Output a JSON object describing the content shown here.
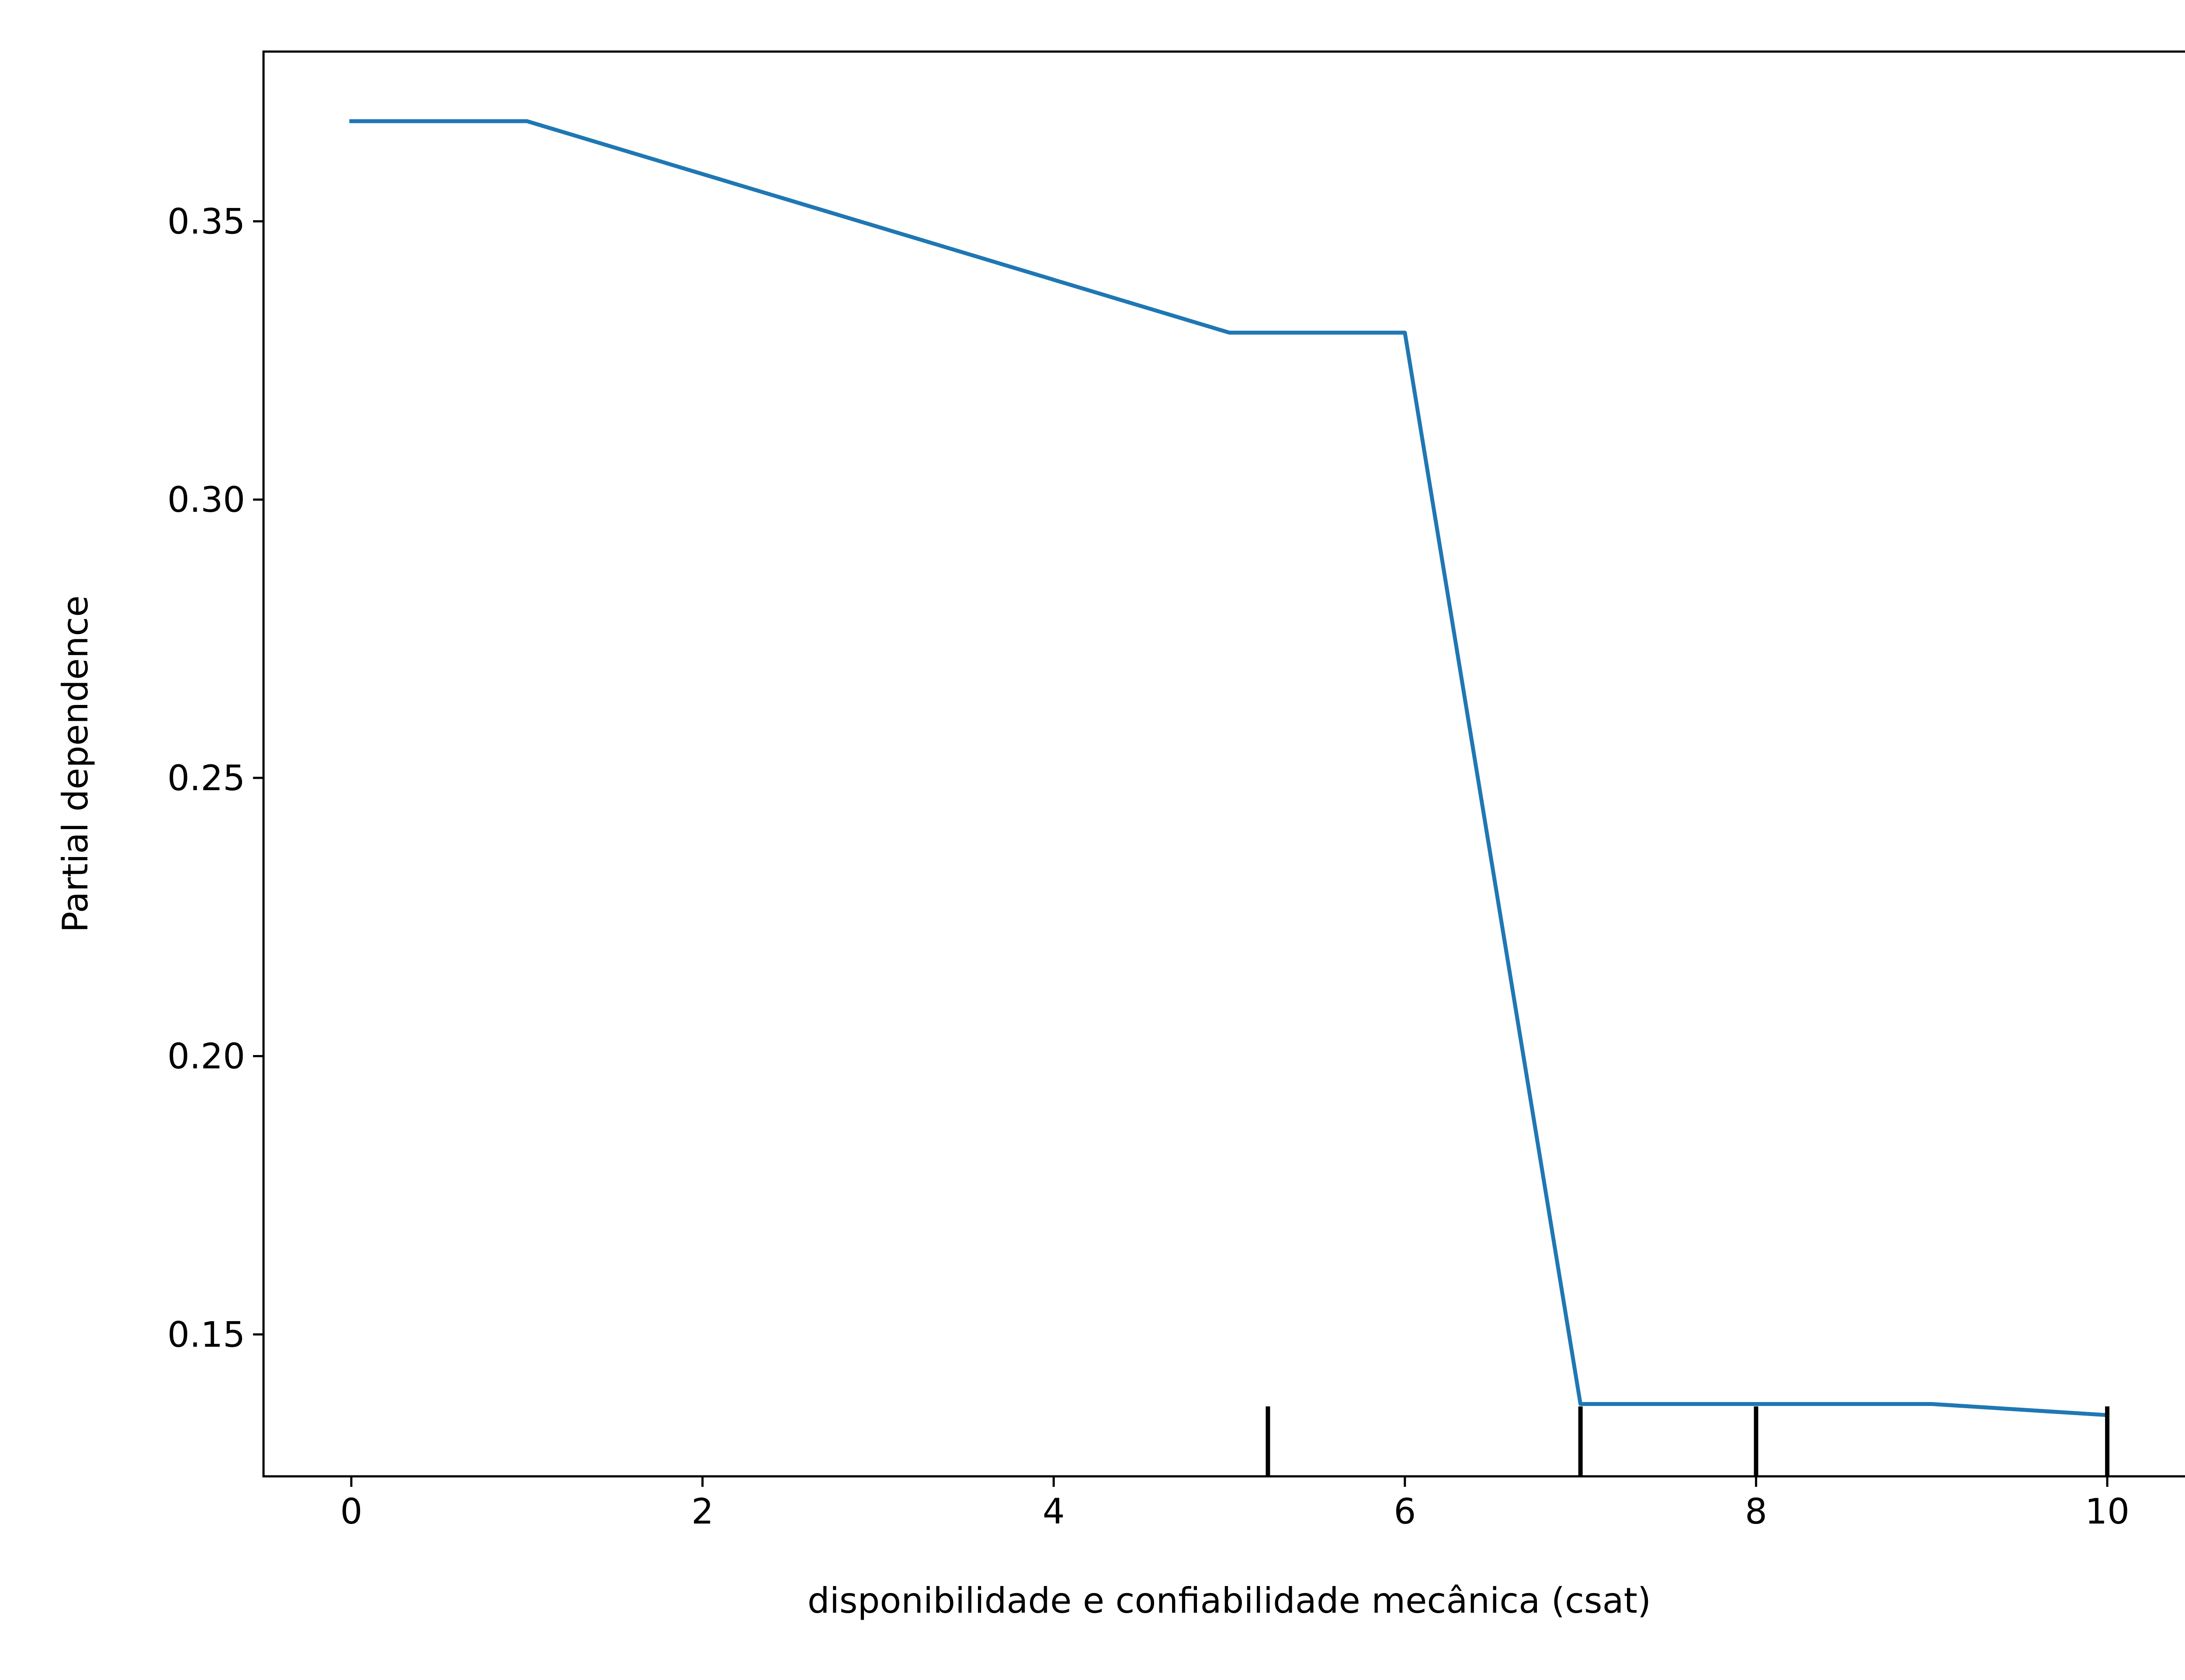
{
  "chart_data": {
    "type": "line",
    "title": "",
    "xlabel": "disponibilidade e confiabilidade mecânica  (csat)",
    "ylabel": "Partial dependence",
    "xlim": [
      -0.5,
      10.5
    ],
    "ylim": [
      0.1245,
      0.3805
    ],
    "xticks": [
      0,
      2,
      4,
      6,
      8,
      10
    ],
    "xtick_labels": [
      "0",
      "2",
      "4",
      "6",
      "8",
      "10"
    ],
    "yticks": [
      0.15,
      0.2,
      0.25,
      0.3,
      0.35
    ],
    "ytick_labels": [
      "0.15",
      "0.20",
      "0.25",
      "0.30",
      "0.35"
    ],
    "grid": false,
    "series": [
      {
        "x": [
          0,
          1,
          2,
          3,
          4,
          5,
          6,
          7,
          8,
          9,
          10
        ],
        "y": [
          0.368,
          0.368,
          0.3585,
          0.349,
          0.3395,
          0.33,
          0.33,
          0.1375,
          0.1375,
          0.1375,
          0.1355
        ],
        "color": "#1f77b4"
      }
    ],
    "rug": {
      "x": [
        5.22,
        7.0,
        8.0,
        10.0
      ],
      "color": "#000000"
    }
  }
}
